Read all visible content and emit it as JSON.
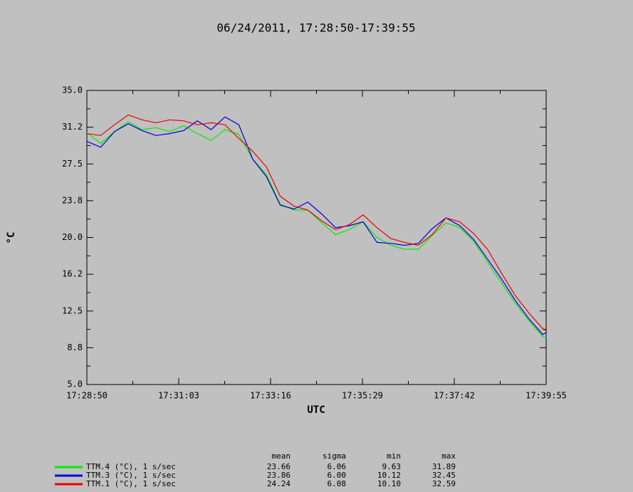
{
  "chart_data": {
    "type": "line",
    "title": "06/24/2011, 17:28:50-17:39:55",
    "xlabel": "UTC",
    "ylabel": "°C",
    "x": [
      63330,
      63350,
      63370,
      63390,
      63410,
      63430,
      63450,
      63470,
      63490,
      63510,
      63530,
      63550,
      63570,
      63590,
      63610,
      63630,
      63650,
      63670,
      63690,
      63710,
      63730,
      63750,
      63770,
      63790,
      63810,
      63830,
      63850,
      63870,
      63890,
      63910,
      63930,
      63950,
      63970,
      63990,
      63995
    ],
    "xlim": [
      63330,
      63995
    ],
    "xticks": [
      {
        "value": 63330,
        "label": "17:28:50"
      },
      {
        "value": 63463,
        "label": "17:31:03"
      },
      {
        "value": 63596,
        "label": "17:33:16"
      },
      {
        "value": 63729,
        "label": "17:35:29"
      },
      {
        "value": 63862,
        "label": "17:37:42"
      },
      {
        "value": 63995,
        "label": "17:39:55"
      }
    ],
    "ylim": [
      5,
      35
    ],
    "yticks": [
      {
        "value": 5,
        "label": "5.0"
      },
      {
        "value": 8.75,
        "label": "8.8"
      },
      {
        "value": 12.5,
        "label": "12.5"
      },
      {
        "value": 16.25,
        "label": "16.2"
      },
      {
        "value": 20,
        "label": "20.0"
      },
      {
        "value": 23.75,
        "label": "23.8"
      },
      {
        "value": 27.5,
        "label": "27.5"
      },
      {
        "value": 31.25,
        "label": "31.2"
      },
      {
        "value": 35,
        "label": "35.0"
      }
    ],
    "series": [
      {
        "name": "TTM.4 (°C), 1 s/sec",
        "color": "#00ee00",
        "values": [
          30.7,
          29.6,
          30.8,
          31.8,
          31.0,
          31.2,
          30.8,
          31.4,
          30.6,
          29.9,
          31.0,
          30.5,
          28.0,
          26.4,
          23.4,
          22.8,
          22.8,
          21.5,
          20.3,
          20.8,
          21.6,
          20.0,
          19.2,
          18.8,
          18.8,
          20.2,
          21.5,
          21.0,
          19.6,
          17.5,
          15.4,
          13.3,
          11.5,
          9.9,
          9.7
        ]
      },
      {
        "name": "TTM.3 (°C), 1 s/sec",
        "color": "#0000dd",
        "values": [
          29.8,
          29.2,
          30.8,
          31.6,
          30.9,
          30.4,
          30.6,
          30.9,
          31.9,
          31.0,
          32.3,
          31.5,
          28.0,
          26.2,
          23.3,
          22.9,
          23.6,
          22.4,
          21.0,
          21.2,
          21.6,
          19.5,
          19.4,
          19.2,
          19.4,
          20.9,
          22.0,
          21.2,
          19.8,
          17.8,
          15.8,
          13.6,
          11.7,
          10.1,
          10.3
        ]
      },
      {
        "name": "TTM.1 (°C), 1 s/sec",
        "color": "#ee0000",
        "values": [
          30.6,
          30.4,
          31.5,
          32.5,
          32.0,
          31.7,
          32.0,
          31.9,
          31.5,
          31.7,
          31.5,
          30.1,
          28.8,
          27.2,
          24.2,
          23.2,
          22.8,
          21.7,
          20.8,
          21.3,
          22.3,
          21.0,
          19.9,
          19.5,
          19.2,
          20.3,
          22.0,
          21.6,
          20.4,
          18.8,
          16.4,
          14.1,
          12.3,
          10.7,
          10.5
        ]
      }
    ],
    "stats": {
      "columns": [
        "mean",
        "sigma",
        "min",
        "max"
      ],
      "rows": [
        [
          "23.66",
          "6.06",
          "9.63",
          "31.89"
        ],
        [
          "23.86",
          "6.00",
          "10.12",
          "32.45"
        ],
        [
          "24.24",
          "6.08",
          "10.10",
          "32.59"
        ]
      ]
    }
  }
}
